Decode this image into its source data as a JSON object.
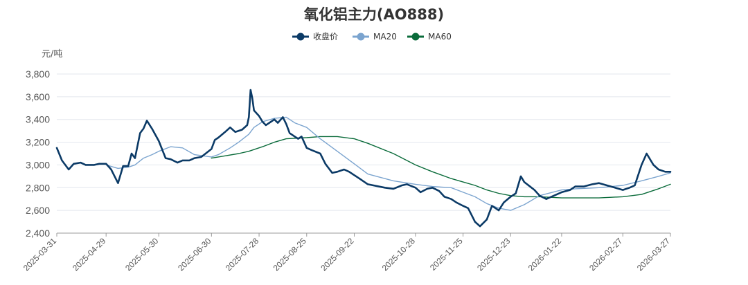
{
  "chart_data": {
    "type": "line",
    "title": "氧化铝主力(AO888)",
    "ylabel": "元/吨",
    "ylim": [
      2400,
      3800
    ],
    "yticks": [
      2400,
      2600,
      2800,
      3000,
      3200,
      3400,
      3600,
      3800
    ],
    "ytick_labels": [
      "2,400",
      "2,600",
      "2,800",
      "3,000",
      "3,200",
      "3,400",
      "3,600",
      "3,800"
    ],
    "x_range": [
      "2025-03-31",
      "2026-03-27"
    ],
    "xticks": [
      "2025-03-31",
      "2025-04-29",
      "2025-05-30",
      "2025-06-30",
      "2025-07-28",
      "2025-08-25",
      "2025-09-22",
      "2025-10-28",
      "2025-11-25",
      "2025-12-23",
      "2026-01-22",
      "2026-02-27",
      "2026-03-27"
    ],
    "grid": true,
    "legend_position": "top",
    "series": [
      {
        "name": "收盘价",
        "color": "#0b3a66",
        "x": [
          "2025-03-31",
          "2025-04-03",
          "2025-04-07",
          "2025-04-10",
          "2025-04-14",
          "2025-04-17",
          "2025-04-22",
          "2025-04-25",
          "2025-04-29",
          "2025-05-02",
          "2025-05-06",
          "2025-05-09",
          "2025-05-12",
          "2025-05-14",
          "2025-05-16",
          "2025-05-19",
          "2025-05-21",
          "2025-05-23",
          "2025-05-26",
          "2025-05-30",
          "2025-06-03",
          "2025-06-06",
          "2025-06-10",
          "2025-06-13",
          "2025-06-17",
          "2025-06-20",
          "2025-06-24",
          "2025-06-30",
          "2025-07-02",
          "2025-07-04",
          "2025-07-08",
          "2025-07-11",
          "2025-07-14",
          "2025-07-16",
          "2025-07-18",
          "2025-07-21",
          "2025-07-22",
          "2025-07-23",
          "2025-07-24",
          "2025-07-25",
          "2025-07-28",
          "2025-07-30",
          "2025-08-01",
          "2025-08-04",
          "2025-08-06",
          "2025-08-08",
          "2025-08-11",
          "2025-08-13",
          "2025-08-15",
          "2025-08-18",
          "2025-08-20",
          "2025-08-22",
          "2025-08-25",
          "2025-08-28",
          "2025-09-02",
          "2025-09-05",
          "2025-09-09",
          "2025-09-12",
          "2025-09-16",
          "2025-09-19",
          "2025-09-22",
          "2025-09-25",
          "2025-09-30",
          "2025-10-10",
          "2025-10-15",
          "2025-10-20",
          "2025-10-23",
          "2025-10-28",
          "2025-10-31",
          "2025-11-04",
          "2025-11-07",
          "2025-11-11",
          "2025-11-14",
          "2025-11-18",
          "2025-11-21",
          "2025-11-25",
          "2025-11-28",
          "2025-12-02",
          "2025-12-05",
          "2025-12-09",
          "2025-12-12",
          "2025-12-16",
          "2025-12-19",
          "2025-12-23",
          "2025-12-26",
          "2025-12-29",
          "2025-12-31",
          "2026-01-06",
          "2026-01-09",
          "2026-01-13",
          "2026-01-16",
          "2026-01-22",
          "2026-01-27",
          "2026-01-30",
          "2026-02-04",
          "2026-02-09",
          "2026-02-13",
          "2026-02-20",
          "2026-02-27",
          "2026-03-03",
          "2026-03-06",
          "2026-03-10",
          "2026-03-13",
          "2026-03-17",
          "2026-03-20",
          "2026-03-24",
          "2026-03-27"
        ],
        "values": [
          3150,
          3040,
          2960,
          3010,
          3020,
          3000,
          3000,
          3010,
          3010,
          2960,
          2840,
          2990,
          2990,
          3100,
          3060,
          3280,
          3320,
          3390,
          3320,
          3210,
          3060,
          3050,
          3020,
          3040,
          3040,
          3060,
          3070,
          3140,
          3220,
          3240,
          3290,
          3330,
          3290,
          3300,
          3310,
          3350,
          3420,
          3660,
          3590,
          3480,
          3430,
          3380,
          3350,
          3380,
          3400,
          3370,
          3420,
          3360,
          3280,
          3250,
          3230,
          3250,
          3150,
          3130,
          3100,
          3010,
          2930,
          2940,
          2960,
          2940,
          2910,
          2880,
          2830,
          2800,
          2790,
          2820,
          2830,
          2800,
          2760,
          2790,
          2800,
          2770,
          2720,
          2700,
          2670,
          2640,
          2620,
          2500,
          2460,
          2520,
          2640,
          2600,
          2670,
          2720,
          2750,
          2900,
          2850,
          2780,
          2730,
          2700,
          2720,
          2760,
          2780,
          2810,
          2810,
          2830,
          2840,
          2810,
          2780,
          2800,
          2820,
          3000,
          3100,
          3000,
          2960,
          2940,
          2940
        ]
      },
      {
        "name": "MA20",
        "color": "#7ba4cf",
        "x": [
          "2025-04-29",
          "2025-05-06",
          "2025-05-12",
          "2025-05-16",
          "2025-05-21",
          "2025-05-26",
          "2025-05-30",
          "2025-06-06",
          "2025-06-13",
          "2025-06-20",
          "2025-06-30",
          "2025-07-04",
          "2025-07-11",
          "2025-07-16",
          "2025-07-22",
          "2025-07-25",
          "2025-07-30",
          "2025-08-06",
          "2025-08-13",
          "2025-08-18",
          "2025-08-25",
          "2025-09-02",
          "2025-09-12",
          "2025-09-22",
          "2025-09-30",
          "2025-10-15",
          "2025-10-28",
          "2025-11-07",
          "2025-11-18",
          "2025-11-25",
          "2025-12-02",
          "2025-12-09",
          "2025-12-16",
          "2025-12-23",
          "2025-12-31",
          "2026-01-09",
          "2026-01-22",
          "2026-01-30",
          "2026-02-13",
          "2026-02-27",
          "2026-03-10",
          "2026-03-20",
          "2026-03-27"
        ],
        "values": [
          3000,
          2970,
          2980,
          3000,
          3060,
          3090,
          3120,
          3160,
          3150,
          3090,
          3070,
          3090,
          3150,
          3200,
          3270,
          3330,
          3380,
          3410,
          3420,
          3370,
          3330,
          3230,
          3120,
          3010,
          2920,
          2860,
          2830,
          2810,
          2800,
          2760,
          2720,
          2660,
          2620,
          2600,
          2650,
          2730,
          2780,
          2790,
          2800,
          2820,
          2860,
          2900,
          2930
        ]
      },
      {
        "name": "MA60",
        "color": "#0a6b3a",
        "x": [
          "2025-06-30",
          "2025-07-08",
          "2025-07-16",
          "2025-07-22",
          "2025-07-30",
          "2025-08-06",
          "2025-08-13",
          "2025-08-25",
          "2025-09-02",
          "2025-09-12",
          "2025-09-22",
          "2025-09-30",
          "2025-10-15",
          "2025-10-28",
          "2025-11-07",
          "2025-11-18",
          "2025-11-25",
          "2025-12-02",
          "2025-12-09",
          "2025-12-16",
          "2025-12-23",
          "2025-12-31",
          "2026-01-09",
          "2026-01-22",
          "2026-02-04",
          "2026-02-13",
          "2026-02-27",
          "2026-03-10",
          "2026-03-20",
          "2026-03-27"
        ],
        "values": [
          3060,
          3080,
          3100,
          3120,
          3160,
          3200,
          3230,
          3240,
          3250,
          3250,
          3230,
          3190,
          3100,
          3000,
          2940,
          2880,
          2850,
          2820,
          2780,
          2750,
          2730,
          2720,
          2720,
          2710,
          2710,
          2710,
          2720,
          2740,
          2790,
          2830
        ]
      }
    ]
  }
}
